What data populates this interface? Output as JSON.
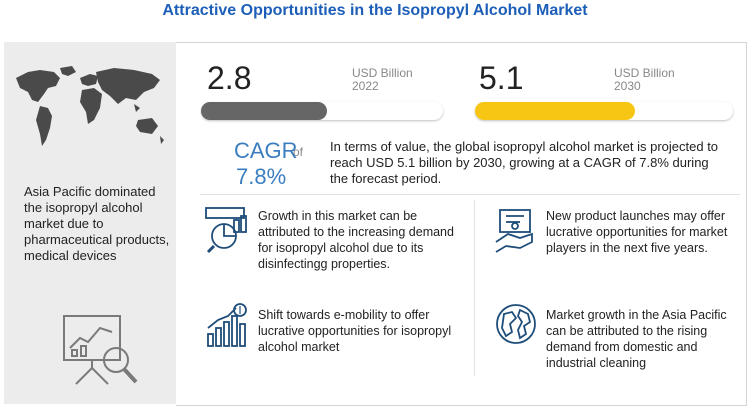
{
  "title": "Attractive Opportunities in the Isopropyl Alcohol Market",
  "left_panel": {
    "text": "Asia Pacific dominated the isopropyl alcohol market due to pharmaceutical products, medical devices"
  },
  "values": [
    {
      "value": "2.8",
      "unit": "USD Billion",
      "year": "2022",
      "bar_fraction": 0.52,
      "bar_color": "#666666"
    },
    {
      "value": "5.1",
      "unit": "USD Billion",
      "year": "2030",
      "bar_fraction": 0.62,
      "bar_color": "#f7c615"
    }
  ],
  "cagr": {
    "label": "CAGR",
    "of": "of",
    "value": "7.8%",
    "text": "In terms of value, the global isopropyl alcohol market is projected to reach USD 5.1 billion by 2030, growing at a CAGR of 7.8% during the forecast period."
  },
  "cards": [
    {
      "icon": "market-analysis-icon",
      "text": "Growth in this market can be attributed to the increasing demand for isopropyl alcohol due to its disinfectingg properties."
    },
    {
      "icon": "product-launch-icon",
      "text": "New product launches may offer lucrative opportunities for market players in the next five years."
    },
    {
      "icon": "growth-chart-icon",
      "text": "Shift towards e-mobility to offer lucrative opportunities for isopropyl alcohol market"
    },
    {
      "icon": "globe-icon",
      "text": "Market growth in the Asia Pacific can be attributed to the rising demand from domestic and industrial cleaning"
    }
  ],
  "colors": {
    "title": "#1d5fb8",
    "cagr": "#3b7ec0",
    "accent_yellow": "#f7c615",
    "gray_bar": "#666666"
  }
}
